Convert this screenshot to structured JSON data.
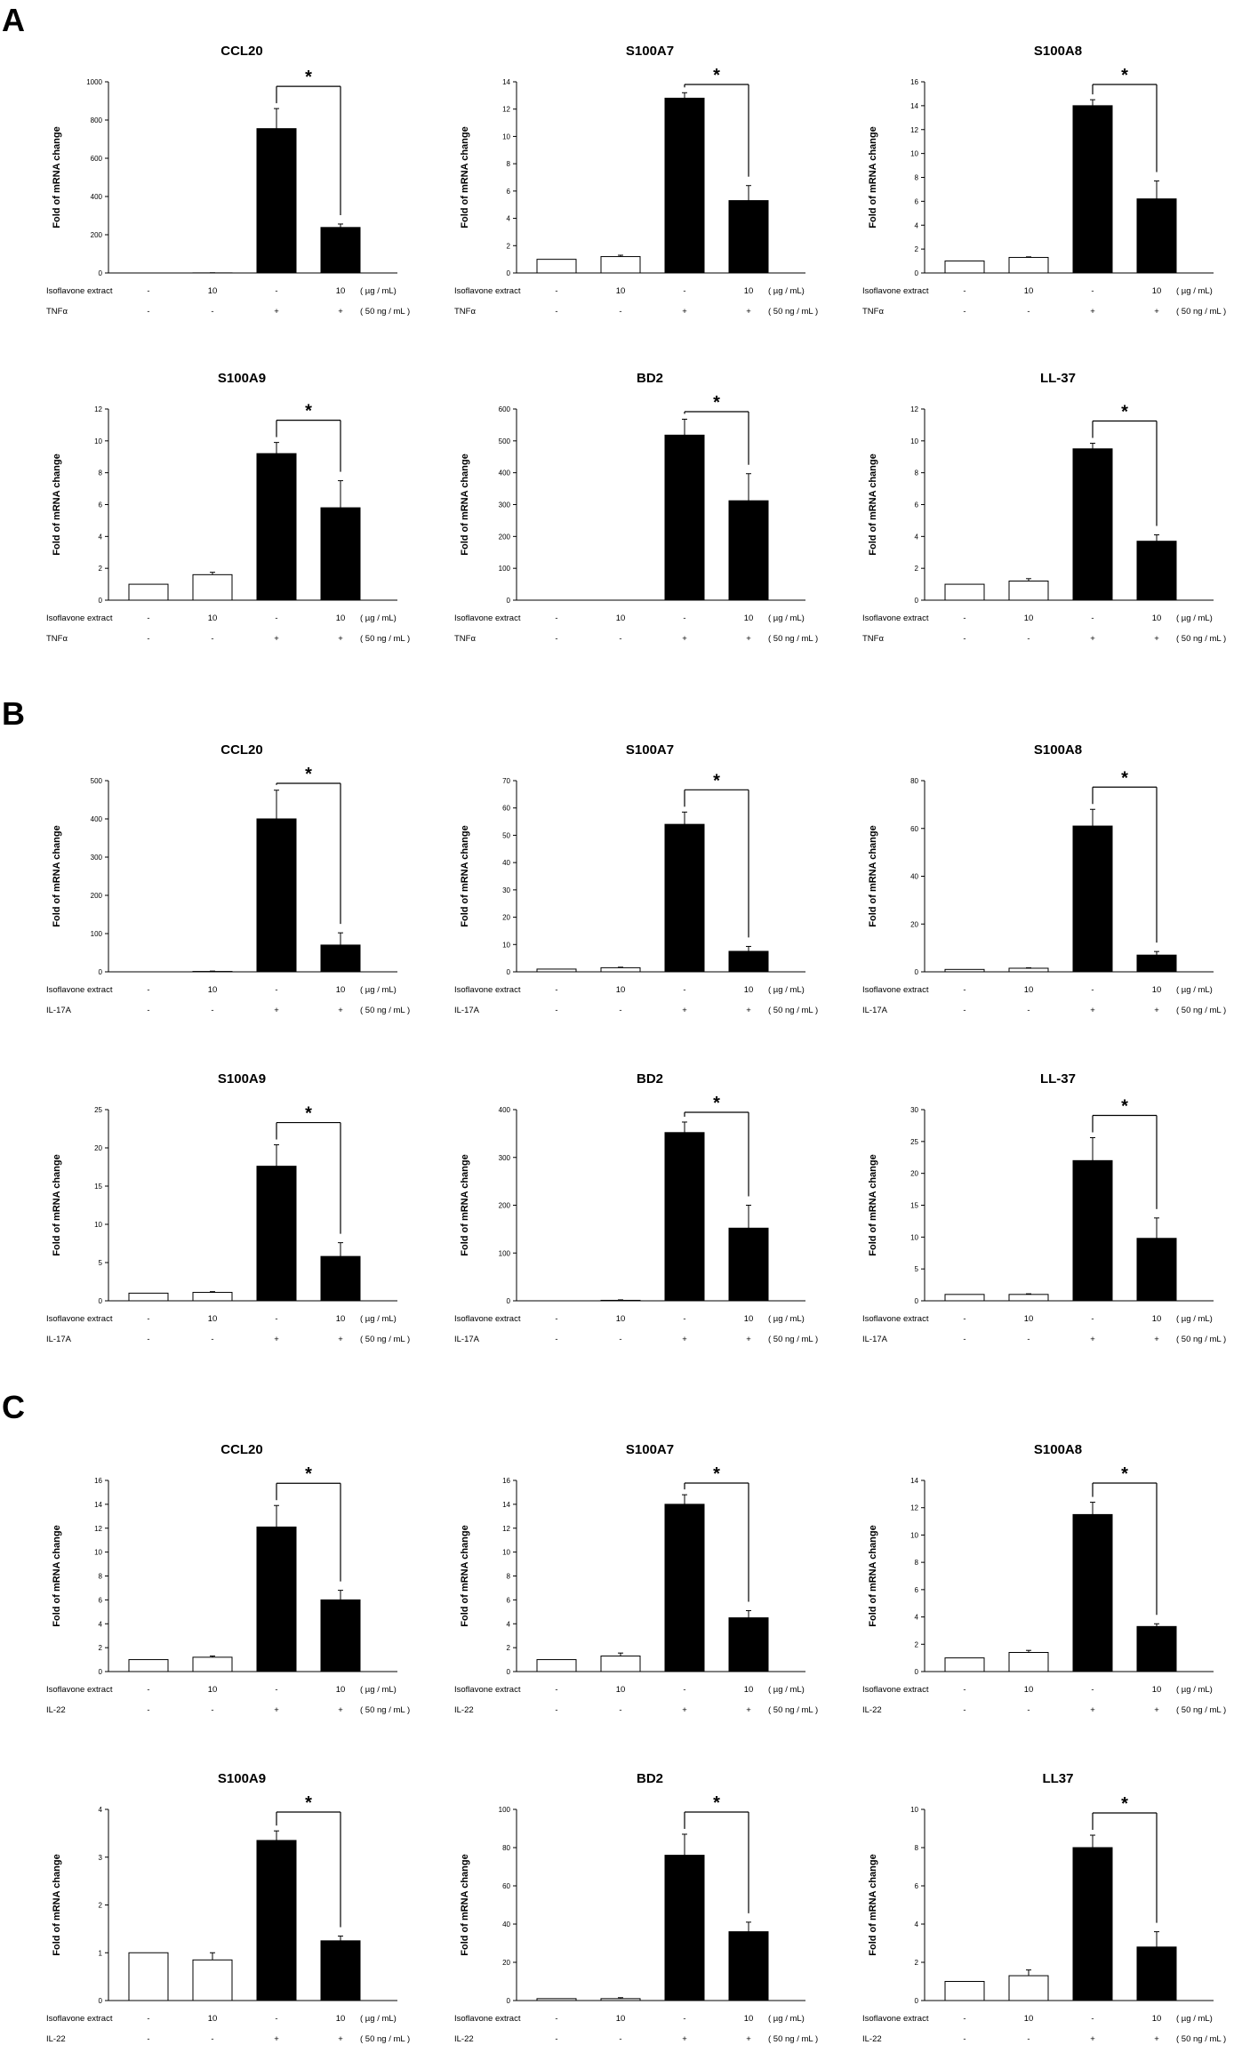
{
  "panels": [
    {
      "letter": "A",
      "charts": [
        0,
        1,
        2,
        3,
        4,
        5
      ]
    },
    {
      "letter": "B",
      "charts": [
        6,
        7,
        8,
        9,
        10,
        11
      ]
    },
    {
      "letter": "C",
      "charts": [
        12,
        13,
        14,
        15,
        16,
        17
      ]
    }
  ],
  "common": {
    "ylabel": "Fold of mRNA change",
    "row1_label": "Isoflavone extract",
    "row1_values": [
      "-",
      "10",
      "-",
      "10"
    ],
    "row1_unit": "( µg / mL)",
    "row2_values": [
      "-",
      "-",
      "+",
      "+"
    ],
    "row2_unit": "( 50 ng / mL )",
    "significance": "*",
    "bar_colors": [
      "#ffffff",
      "#ffffff",
      "#000000",
      "#000000"
    ]
  },
  "chart_data": [
    {
      "type": "bar",
      "panel": "A",
      "title": "CCL20",
      "stimulus": "TNFα",
      "ylim": [
        0,
        1000
      ],
      "ticks": [
        "0",
        "200",
        "400",
        "600",
        "800",
        "1000"
      ],
      "values": [
        0,
        0.5,
        755,
        238
      ],
      "errors": [
        0,
        0.5,
        105,
        18
      ]
    },
    {
      "type": "bar",
      "panel": "A",
      "title": "S100A7",
      "stimulus": "TNFα",
      "ylim": [
        0,
        14
      ],
      "ticks": [
        "0",
        "2",
        "4",
        "6",
        "8",
        "10",
        "12",
        "14"
      ],
      "values": [
        1.0,
        1.2,
        12.8,
        5.3
      ],
      "errors": [
        0,
        0.1,
        0.4,
        1.1
      ]
    },
    {
      "type": "bar",
      "panel": "A",
      "title": "S100A8",
      "stimulus": "TNFα",
      "ylim": [
        0,
        16
      ],
      "ticks": [
        "0",
        "2",
        "4",
        "6",
        "8",
        "10",
        "12",
        "14",
        "16"
      ],
      "values": [
        1.0,
        1.3,
        14.0,
        6.2
      ],
      "errors": [
        0,
        0.05,
        0.5,
        1.5
      ]
    },
    {
      "type": "bar",
      "panel": "A",
      "title": "S100A9",
      "stimulus": "TNFα",
      "ylim": [
        0,
        12
      ],
      "ticks": [
        "0",
        "2",
        "4",
        "6",
        "8",
        "10",
        "12"
      ],
      "values": [
        1.0,
        1.6,
        9.2,
        5.8
      ],
      "errors": [
        0,
        0.15,
        0.7,
        1.7
      ]
    },
    {
      "type": "bar",
      "panel": "A",
      "title": "BD2",
      "stimulus": "TNFα",
      "ylim": [
        0,
        600
      ],
      "ticks": [
        "0",
        "100",
        "200",
        "300",
        "400",
        "500",
        "600"
      ],
      "values": [
        0,
        0,
        518,
        312
      ],
      "errors": [
        0,
        0,
        50,
        85
      ]
    },
    {
      "type": "bar",
      "panel": "A",
      "title": "LL-37",
      "stimulus": "TNFα",
      "ylim": [
        0,
        12
      ],
      "ticks": [
        "0",
        "2",
        "4",
        "6",
        "8",
        "10",
        "12"
      ],
      "values": [
        1.0,
        1.2,
        9.5,
        3.7
      ],
      "errors": [
        0,
        0.15,
        0.35,
        0.4
      ]
    },
    {
      "type": "bar",
      "panel": "B",
      "title": "CCL20",
      "stimulus": "IL-17A",
      "ylim": [
        0,
        500
      ],
      "ticks": [
        "0",
        "100",
        "200",
        "300",
        "400",
        "500"
      ],
      "values": [
        0,
        1,
        400,
        70
      ],
      "errors": [
        0,
        1,
        75,
        32
      ]
    },
    {
      "type": "bar",
      "panel": "B",
      "title": "S100A7",
      "stimulus": "IL-17A",
      "ylim": [
        0,
        70
      ],
      "ticks": [
        "0",
        "10",
        "20",
        "30",
        "40",
        "50",
        "60",
        "70"
      ],
      "values": [
        1,
        1.5,
        54,
        7.5
      ],
      "errors": [
        0,
        0.2,
        4.5,
        1.8
      ]
    },
    {
      "type": "bar",
      "panel": "B",
      "title": "S100A8",
      "stimulus": "IL-17A",
      "ylim": [
        0,
        80
      ],
      "ticks": [
        "0",
        "20",
        "40",
        "60",
        "80"
      ],
      "values": [
        1,
        1.5,
        61,
        7.0
      ],
      "errors": [
        0,
        0.2,
        7,
        1.5
      ]
    },
    {
      "type": "bar",
      "panel": "B",
      "title": "S100A9",
      "stimulus": "IL-17A",
      "ylim": [
        0,
        25
      ],
      "ticks": [
        "0",
        "5",
        "10",
        "15",
        "20",
        "25"
      ],
      "values": [
        1.0,
        1.1,
        17.6,
        5.8
      ],
      "errors": [
        0,
        0.1,
        2.8,
        1.8
      ]
    },
    {
      "type": "bar",
      "panel": "B",
      "title": "BD2",
      "stimulus": "IL-17A",
      "ylim": [
        0,
        400
      ],
      "ticks": [
        "0",
        "100",
        "200",
        "300",
        "400"
      ],
      "values": [
        0,
        1,
        352,
        152
      ],
      "errors": [
        0,
        1,
        22,
        48
      ]
    },
    {
      "type": "bar",
      "panel": "B",
      "title": "LL-37",
      "stimulus": "IL-17A",
      "ylim": [
        0,
        30
      ],
      "ticks": [
        "0",
        "5",
        "10",
        "15",
        "20",
        "25",
        "30"
      ],
      "values": [
        1.0,
        1.0,
        22.0,
        9.8
      ],
      "errors": [
        0,
        0.1,
        3.6,
        3.2
      ]
    },
    {
      "type": "bar",
      "panel": "C",
      "title": "CCL20",
      "stimulus": "IL-22",
      "ylim": [
        0,
        16
      ],
      "ticks": [
        "0",
        "2",
        "4",
        "6",
        "8",
        "10",
        "12",
        "14",
        "16"
      ],
      "values": [
        1.0,
        1.2,
        12.1,
        6.0
      ],
      "errors": [
        0,
        0.1,
        1.8,
        0.8
      ]
    },
    {
      "type": "bar",
      "panel": "C",
      "title": "S100A7",
      "stimulus": "IL-22",
      "ylim": [
        0,
        16
      ],
      "ticks": [
        "0",
        "2",
        "4",
        "6",
        "8",
        "10",
        "12",
        "14",
        "16"
      ],
      "values": [
        1.0,
        1.3,
        14.0,
        4.5
      ],
      "errors": [
        0,
        0.25,
        0.8,
        0.6
      ]
    },
    {
      "type": "bar",
      "panel": "C",
      "title": "S100A8",
      "stimulus": "IL-22",
      "ylim": [
        0,
        14
      ],
      "ticks": [
        "0",
        "2",
        "4",
        "6",
        "8",
        "10",
        "12",
        "14"
      ],
      "values": [
        1.0,
        1.4,
        11.5,
        3.3
      ],
      "errors": [
        0,
        0.15,
        0.9,
        0.2
      ]
    },
    {
      "type": "bar",
      "panel": "C",
      "title": "S100A9",
      "stimulus": "IL-22",
      "ylim": [
        0,
        4
      ],
      "ticks": [
        "0",
        "1",
        "2",
        "3",
        "4"
      ],
      "values": [
        1.0,
        0.85,
        3.35,
        1.25
      ],
      "errors": [
        0,
        0.15,
        0.2,
        0.1
      ]
    },
    {
      "type": "bar",
      "panel": "C",
      "title": "BD2",
      "stimulus": "IL-22",
      "ylim": [
        0,
        100
      ],
      "ticks": [
        "0",
        "20",
        "40",
        "60",
        "80",
        "100"
      ],
      "values": [
        1,
        1,
        76,
        36
      ],
      "errors": [
        0,
        0.5,
        11,
        5
      ]
    },
    {
      "type": "bar",
      "panel": "C",
      "title": "LL37",
      "stimulus": "IL-22",
      "ylim": [
        0,
        10
      ],
      "ticks": [
        "0",
        "2",
        "4",
        "6",
        "8",
        "10"
      ],
      "values": [
        1.0,
        1.3,
        8.0,
        2.8
      ],
      "errors": [
        0,
        0.3,
        0.65,
        0.8
      ]
    }
  ]
}
